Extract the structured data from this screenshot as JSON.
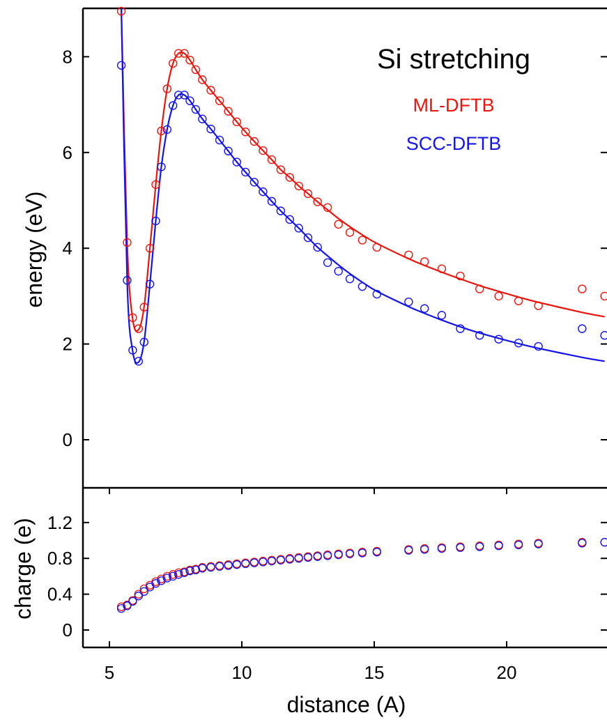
{
  "chart_data": [
    {
      "type": "line",
      "panel": "top",
      "title": "Si stretching",
      "xlabel": "",
      "ylabel": "energy (eV)",
      "xlim": [
        4,
        23.7
      ],
      "ylim": [
        -1,
        9
      ],
      "yticks": [
        0,
        2,
        4,
        6,
        8
      ],
      "ytick_labels": [
        "0",
        "2",
        "4",
        "6",
        "8"
      ],
      "grid": false,
      "legend_position": "top-right",
      "series": [
        {
          "name": "ML-DFTB",
          "color": "#e8140e",
          "marker": "open-circle",
          "line": "smooth",
          "x": [
            5.45,
            5.67,
            5.88,
            6.1,
            6.31,
            6.53,
            6.75,
            6.96,
            7.18,
            7.4,
            7.61,
            7.83,
            8.04,
            8.26,
            8.51,
            8.83,
            9.16,
            9.49,
            9.81,
            10.14,
            10.47,
            10.8,
            11.13,
            11.47,
            11.81,
            12.15,
            12.5,
            12.86,
            13.24,
            13.65,
            14.08,
            14.55,
            15.1,
            16.3,
            16.9,
            17.55,
            18.25,
            18.98,
            19.7,
            20.45,
            21.2,
            22.85,
            23.7
          ],
          "y": [
            8.95,
            4.12,
            2.55,
            2.32,
            2.77,
            4.0,
            5.33,
            6.45,
            7.33,
            7.86,
            8.07,
            8.07,
            7.93,
            7.73,
            7.52,
            7.3,
            7.08,
            6.86,
            6.64,
            6.43,
            6.23,
            6.04,
            5.85,
            5.64,
            5.48,
            5.3,
            5.14,
            4.97,
            4.85,
            4.5,
            4.33,
            4.17,
            4.02,
            3.86,
            3.72,
            3.57,
            3.42,
            3.15,
            3.0,
            2.9,
            2.8,
            3.15,
            3.0
          ],
          "y_curve": [
            12.0,
            4.1,
            2.52,
            2.3,
            2.78,
            4.0,
            5.33,
            6.45,
            7.33,
            7.86,
            8.07,
            8.07,
            7.93,
            7.73,
            7.52,
            7.3,
            7.08,
            6.86,
            6.64,
            6.43,
            6.23,
            6.04,
            5.85,
            5.64,
            5.48,
            5.3,
            5.14,
            4.97,
            4.8,
            4.62,
            4.45,
            4.28,
            4.1,
            3.78,
            3.64,
            3.5,
            3.36,
            3.22,
            3.1,
            2.98,
            2.87,
            2.66,
            2.57
          ]
        },
        {
          "name": "SCC-DFTB",
          "color": "#1414e6",
          "marker": "open-circle",
          "line": "smooth",
          "x": [
            5.45,
            5.67,
            5.88,
            6.1,
            6.31,
            6.53,
            6.75,
            6.96,
            7.18,
            7.4,
            7.61,
            7.83,
            8.04,
            8.26,
            8.51,
            8.83,
            9.16,
            9.49,
            9.81,
            10.14,
            10.47,
            10.8,
            11.13,
            11.47,
            11.81,
            12.15,
            12.5,
            12.86,
            13.24,
            13.65,
            14.08,
            14.55,
            15.1,
            16.3,
            16.9,
            17.55,
            18.25,
            18.98,
            19.7,
            20.45,
            21.2,
            22.85,
            23.7
          ],
          "y": [
            7.82,
            3.33,
            1.87,
            1.64,
            2.04,
            3.25,
            4.57,
            5.7,
            6.48,
            6.98,
            7.2,
            7.2,
            7.08,
            6.9,
            6.7,
            6.49,
            6.26,
            6.03,
            5.8,
            5.59,
            5.38,
            5.18,
            4.98,
            4.78,
            4.6,
            4.42,
            4.22,
            4.02,
            3.7,
            3.52,
            3.36,
            3.2,
            3.04,
            2.88,
            2.74,
            2.6,
            2.32,
            2.18,
            2.1,
            2.02,
            1.95,
            2.32,
            2.18
          ],
          "y_curve": [
            11.0,
            3.3,
            1.85,
            1.62,
            2.05,
            3.25,
            4.57,
            5.7,
            6.48,
            6.98,
            7.2,
            7.2,
            7.08,
            6.9,
            6.7,
            6.49,
            6.26,
            6.03,
            5.8,
            5.59,
            5.38,
            5.18,
            4.98,
            4.78,
            4.6,
            4.42,
            4.22,
            4.02,
            3.84,
            3.65,
            3.47,
            3.29,
            3.1,
            2.78,
            2.64,
            2.5,
            2.36,
            2.23,
            2.12,
            2.01,
            1.91,
            1.72,
            1.64
          ]
        }
      ]
    },
    {
      "type": "scatter",
      "panel": "bottom",
      "xlabel": "distance (A)",
      "ylabel": "charge (e)",
      "xlim": [
        4,
        23.7
      ],
      "ylim": [
        -0.2,
        1.55
      ],
      "xticks": [
        5,
        10,
        15,
        20
      ],
      "xtick_labels": [
        "5",
        "10",
        "15",
        "20"
      ],
      "yticks": [
        0,
        0.4,
        0.8,
        1.2
      ],
      "ytick_labels": [
        "0",
        "0.4",
        "0.8",
        "1.2"
      ],
      "grid": false,
      "series": [
        {
          "name": "ML-DFTB",
          "color": "#e8140e",
          "marker": "open-circle",
          "x": [
            5.45,
            5.67,
            5.88,
            6.1,
            6.31,
            6.53,
            6.75,
            6.96,
            7.18,
            7.4,
            7.61,
            7.83,
            8.04,
            8.26,
            8.51,
            8.83,
            9.16,
            9.49,
            9.81,
            10.14,
            10.47,
            10.8,
            11.13,
            11.47,
            11.81,
            12.15,
            12.5,
            12.86,
            13.24,
            13.65,
            14.08,
            14.55,
            15.1,
            16.3,
            16.9,
            17.55,
            18.25,
            18.98,
            19.7,
            20.45,
            21.2,
            22.85,
            23.7
          ],
          "y": [
            0.26,
            0.28,
            0.33,
            0.4,
            0.46,
            0.5,
            0.54,
            0.57,
            0.6,
            0.62,
            0.64,
            0.65,
            0.67,
            0.68,
            0.7,
            0.71,
            0.72,
            0.73,
            0.74,
            0.75,
            0.76,
            0.77,
            0.78,
            0.79,
            0.8,
            0.81,
            0.82,
            0.83,
            0.84,
            0.85,
            0.86,
            0.87,
            0.88,
            0.9,
            0.91,
            0.92,
            0.93,
            0.94,
            0.95,
            0.96,
            0.97,
            0.98,
            0.98
          ]
        },
        {
          "name": "SCC-DFTB",
          "color": "#1414e6",
          "marker": "open-circle",
          "x": [
            5.45,
            5.67,
            5.88,
            6.1,
            6.31,
            6.53,
            6.75,
            6.96,
            7.18,
            7.4,
            7.61,
            7.83,
            8.04,
            8.26,
            8.51,
            8.83,
            9.16,
            9.49,
            9.81,
            10.14,
            10.47,
            10.8,
            11.13,
            11.47,
            11.81,
            12.15,
            12.5,
            12.86,
            13.24,
            13.65,
            14.08,
            14.55,
            15.1,
            16.3,
            16.9,
            17.55,
            18.25,
            18.98,
            19.7,
            20.45,
            21.2,
            22.85,
            23.7
          ],
          "y": [
            0.24,
            0.27,
            0.32,
            0.38,
            0.43,
            0.48,
            0.52,
            0.55,
            0.58,
            0.6,
            0.62,
            0.64,
            0.66,
            0.67,
            0.69,
            0.7,
            0.71,
            0.72,
            0.73,
            0.74,
            0.75,
            0.76,
            0.77,
            0.78,
            0.79,
            0.8,
            0.81,
            0.82,
            0.83,
            0.84,
            0.85,
            0.86,
            0.87,
            0.89,
            0.9,
            0.91,
            0.92,
            0.93,
            0.94,
            0.95,
            0.96,
            0.97,
            0.98
          ]
        }
      ]
    }
  ]
}
